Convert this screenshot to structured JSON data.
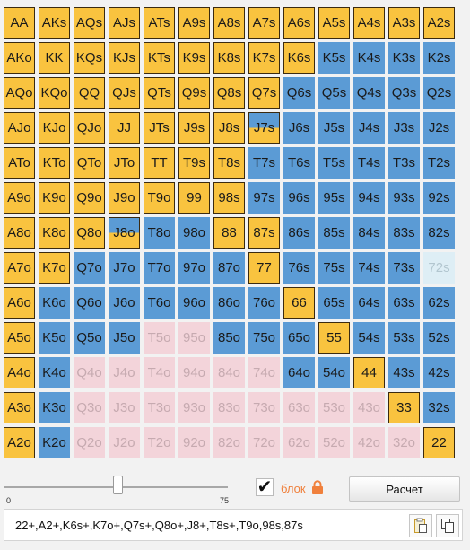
{
  "colors": {
    "raise": "#f9c33f",
    "call": "#5b9bd5",
    "fold": "#f3d4da",
    "light": "#deeef5",
    "accent": "#f0803c"
  },
  "grid": {
    "cells": [
      [
        [
          "AA",
          "raise"
        ],
        [
          "AKs",
          "raise"
        ],
        [
          "AQs",
          "raise"
        ],
        [
          "AJs",
          "raise"
        ],
        [
          "ATs",
          "raise"
        ],
        [
          "A9s",
          "raise"
        ],
        [
          "A8s",
          "raise"
        ],
        [
          "A7s",
          "raise"
        ],
        [
          "A6s",
          "raise"
        ],
        [
          "A5s",
          "raise"
        ],
        [
          "A4s",
          "raise"
        ],
        [
          "A3s",
          "raise"
        ],
        [
          "A2s",
          "raise"
        ]
      ],
      [
        [
          "AKo",
          "raise"
        ],
        [
          "KK",
          "raise"
        ],
        [
          "KQs",
          "raise"
        ],
        [
          "KJs",
          "raise"
        ],
        [
          "KTs",
          "raise"
        ],
        [
          "K9s",
          "raise"
        ],
        [
          "K8s",
          "raise"
        ],
        [
          "K7s",
          "raise"
        ],
        [
          "K6s",
          "raise"
        ],
        [
          "K5s",
          "call"
        ],
        [
          "K4s",
          "call"
        ],
        [
          "K3s",
          "call"
        ],
        [
          "K2s",
          "call"
        ]
      ],
      [
        [
          "AQo",
          "raise"
        ],
        [
          "KQo",
          "raise"
        ],
        [
          "QQ",
          "raise"
        ],
        [
          "QJs",
          "raise"
        ],
        [
          "QTs",
          "raise"
        ],
        [
          "Q9s",
          "raise"
        ],
        [
          "Q8s",
          "raise"
        ],
        [
          "Q7s",
          "raise"
        ],
        [
          "Q6s",
          "call"
        ],
        [
          "Q5s",
          "call"
        ],
        [
          "Q4s",
          "call"
        ],
        [
          "Q3s",
          "call"
        ],
        [
          "Q2s",
          "call"
        ]
      ],
      [
        [
          "AJo",
          "raise"
        ],
        [
          "KJo",
          "raise"
        ],
        [
          "QJo",
          "raise"
        ],
        [
          "JJ",
          "raise"
        ],
        [
          "JTs",
          "raise"
        ],
        [
          "J9s",
          "raise"
        ],
        [
          "J8s",
          "raise"
        ],
        [
          "J7s",
          "mix"
        ],
        [
          "J6s",
          "call"
        ],
        [
          "J5s",
          "call"
        ],
        [
          "J4s",
          "call"
        ],
        [
          "J3s",
          "call"
        ],
        [
          "J2s",
          "call"
        ]
      ],
      [
        [
          "ATo",
          "raise"
        ],
        [
          "KTo",
          "raise"
        ],
        [
          "QTo",
          "raise"
        ],
        [
          "JTo",
          "raise"
        ],
        [
          "TT",
          "raise"
        ],
        [
          "T9s",
          "raise"
        ],
        [
          "T8s",
          "raise"
        ],
        [
          "T7s",
          "call"
        ],
        [
          "T6s",
          "call"
        ],
        [
          "T5s",
          "call"
        ],
        [
          "T4s",
          "call"
        ],
        [
          "T3s",
          "call"
        ],
        [
          "T2s",
          "call"
        ]
      ],
      [
        [
          "A9o",
          "raise"
        ],
        [
          "K9o",
          "raise"
        ],
        [
          "Q9o",
          "raise"
        ],
        [
          "J9o",
          "raise"
        ],
        [
          "T9o",
          "raise"
        ],
        [
          "99",
          "raise"
        ],
        [
          "98s",
          "raise"
        ],
        [
          "97s",
          "call"
        ],
        [
          "96s",
          "call"
        ],
        [
          "95s",
          "call"
        ],
        [
          "94s",
          "call"
        ],
        [
          "93s",
          "call"
        ],
        [
          "92s",
          "call"
        ]
      ],
      [
        [
          "A8o",
          "raise"
        ],
        [
          "K8o",
          "raise"
        ],
        [
          "Q8o",
          "raise"
        ],
        [
          "J8o",
          "mix"
        ],
        [
          "T8o",
          "call"
        ],
        [
          "98o",
          "call"
        ],
        [
          "88",
          "raise"
        ],
        [
          "87s",
          "raise"
        ],
        [
          "86s",
          "call"
        ],
        [
          "85s",
          "call"
        ],
        [
          "84s",
          "call"
        ],
        [
          "83s",
          "call"
        ],
        [
          "82s",
          "call"
        ]
      ],
      [
        [
          "A7o",
          "raise"
        ],
        [
          "K7o",
          "raise"
        ],
        [
          "Q7o",
          "call"
        ],
        [
          "J7o",
          "call"
        ],
        [
          "T7o",
          "call"
        ],
        [
          "97o",
          "call"
        ],
        [
          "87o",
          "call"
        ],
        [
          "77",
          "raise"
        ],
        [
          "76s",
          "call"
        ],
        [
          "75s",
          "call"
        ],
        [
          "74s",
          "call"
        ],
        [
          "73s",
          "call"
        ],
        [
          "72s",
          "light"
        ]
      ],
      [
        [
          "A6o",
          "raise"
        ],
        [
          "K6o",
          "call"
        ],
        [
          "Q6o",
          "call"
        ],
        [
          "J6o",
          "call"
        ],
        [
          "T6o",
          "call"
        ],
        [
          "96o",
          "call"
        ],
        [
          "86o",
          "call"
        ],
        [
          "76o",
          "call"
        ],
        [
          "66",
          "raise"
        ],
        [
          "65s",
          "call"
        ],
        [
          "64s",
          "call"
        ],
        [
          "63s",
          "call"
        ],
        [
          "62s",
          "call"
        ]
      ],
      [
        [
          "A5o",
          "raise"
        ],
        [
          "K5o",
          "call"
        ],
        [
          "Q5o",
          "call"
        ],
        [
          "J5o",
          "call"
        ],
        [
          "T5o",
          "fold"
        ],
        [
          "95o",
          "fold"
        ],
        [
          "85o",
          "call"
        ],
        [
          "75o",
          "call"
        ],
        [
          "65o",
          "call"
        ],
        [
          "55",
          "raise"
        ],
        [
          "54s",
          "call"
        ],
        [
          "53s",
          "call"
        ],
        [
          "52s",
          "call"
        ]
      ],
      [
        [
          "A4o",
          "raise"
        ],
        [
          "K4o",
          "call"
        ],
        [
          "Q4o",
          "fold"
        ],
        [
          "J4o",
          "fold"
        ],
        [
          "T4o",
          "fold"
        ],
        [
          "94o",
          "fold"
        ],
        [
          "84o",
          "fold"
        ],
        [
          "74o",
          "fold"
        ],
        [
          "64o",
          "call"
        ],
        [
          "54o",
          "call"
        ],
        [
          "44",
          "raise"
        ],
        [
          "43s",
          "call"
        ],
        [
          "42s",
          "call"
        ]
      ],
      [
        [
          "A3o",
          "raise"
        ],
        [
          "K3o",
          "call"
        ],
        [
          "Q3o",
          "fold"
        ],
        [
          "J3o",
          "fold"
        ],
        [
          "T3o",
          "fold"
        ],
        [
          "93o",
          "fold"
        ],
        [
          "83o",
          "fold"
        ],
        [
          "73o",
          "fold"
        ],
        [
          "63o",
          "fold"
        ],
        [
          "53o",
          "fold"
        ],
        [
          "43o",
          "fold"
        ],
        [
          "33",
          "raise"
        ],
        [
          "32s",
          "call"
        ]
      ],
      [
        [
          "A2o",
          "raise"
        ],
        [
          "K2o",
          "call"
        ],
        [
          "Q2o",
          "fold"
        ],
        [
          "J2o",
          "fold"
        ],
        [
          "T2o",
          "fold"
        ],
        [
          "92o",
          "fold"
        ],
        [
          "82o",
          "fold"
        ],
        [
          "72o",
          "fold"
        ],
        [
          "62o",
          "fold"
        ],
        [
          "52o",
          "fold"
        ],
        [
          "42o",
          "fold"
        ],
        [
          "32o",
          "fold"
        ],
        [
          "22",
          "raise"
        ]
      ]
    ]
  },
  "slider": {
    "min_label": "0",
    "max_label": "75",
    "value": 38
  },
  "block": {
    "checked": true,
    "checkmark": "✔",
    "label": "блок",
    "lock_icon": "lock-icon"
  },
  "calc_button": {
    "label": "Расчет"
  },
  "range": {
    "text": "22+,A2+,K6s+,K7o+,Q7s+,Q8o+,J8+,T8s+,T9o,98s,87s"
  },
  "tools": {
    "paste_icon": "paste-icon",
    "copy_icon": "copy-icon"
  }
}
